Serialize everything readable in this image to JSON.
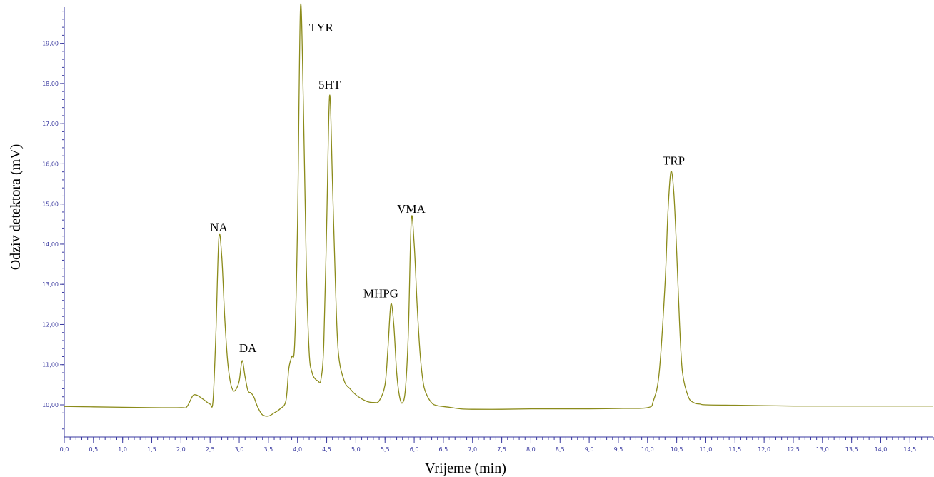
{
  "chart_data": {
    "type": "line",
    "title": "",
    "xlabel": "Vrijeme (min)",
    "ylabel": "Odziv detektora (mV)",
    "xlim": [
      0.0,
      14.9
    ],
    "ylim": [
      9.2,
      19.9
    ],
    "x_ticks": [
      0.0,
      0.5,
      1.0,
      1.5,
      2.0,
      2.5,
      3.0,
      3.5,
      4.0,
      4.5,
      5.0,
      5.5,
      6.0,
      6.5,
      7.0,
      7.5,
      8.0,
      8.5,
      9.0,
      9.5,
      10.0,
      10.5,
      11.0,
      11.5,
      12.0,
      12.5,
      13.0,
      13.5,
      14.0,
      14.5
    ],
    "x_tick_labels": [
      "0,0",
      "0,5",
      "1,0",
      "1,5",
      "2,0",
      "2,5",
      "3,0",
      "3,5",
      "4,0",
      "4,5",
      "5,0",
      "5,5",
      "6,0",
      "6,5",
      "7,0",
      "7,5",
      "8,0",
      "8,5",
      "9,0",
      "9,5",
      "10,0",
      "10,5",
      "11,0",
      "11,5",
      "12,0",
      "12,5",
      "13,0",
      "13,5",
      "14,0",
      "14,5"
    ],
    "y_ticks": [
      10,
      11,
      12,
      13,
      14,
      15,
      16,
      17,
      18,
      19
    ],
    "y_tick_labels": [
      "10,00",
      "11,00",
      "12,00",
      "13,00",
      "14,00",
      "15,00",
      "16,00",
      "17,00",
      "18,00",
      "19,00"
    ],
    "grid": false,
    "line_color": "#8b8b1a",
    "series": [
      {
        "x": [
          0.0,
          0.5,
          1.0,
          1.5,
          2.0,
          2.1,
          2.2,
          2.25,
          2.3,
          2.4,
          2.5,
          2.55,
          2.6,
          2.65,
          2.7,
          2.75,
          2.8,
          2.85,
          2.9,
          2.95,
          3.0,
          3.05,
          3.1,
          3.15,
          3.2,
          3.25,
          3.3,
          3.35,
          3.4,
          3.5,
          3.6,
          3.7,
          3.8,
          3.85,
          3.9,
          3.95,
          4.0,
          4.05,
          4.1,
          4.15,
          4.2,
          4.25,
          4.3,
          4.35,
          4.4,
          4.45,
          4.5,
          4.55,
          4.6,
          4.65,
          4.7,
          4.8,
          4.9,
          5.0,
          5.1,
          5.2,
          5.3,
          5.4,
          5.5,
          5.55,
          5.6,
          5.65,
          5.7,
          5.75,
          5.8,
          5.85,
          5.9,
          5.95,
          6.0,
          6.05,
          6.1,
          6.15,
          6.2,
          6.3,
          6.4,
          6.6,
          6.8,
          7.0,
          7.5,
          8.0,
          8.5,
          9.0,
          9.5,
          10.0,
          10.1,
          10.2,
          10.3,
          10.35,
          10.4,
          10.45,
          10.5,
          10.55,
          10.6,
          10.7,
          10.8,
          10.9,
          11.0,
          11.5,
          12.0,
          12.5,
          13.0,
          13.5,
          14.0,
          14.5,
          14.9
        ],
        "y": [
          9.96,
          9.95,
          9.94,
          9.93,
          9.93,
          9.95,
          10.22,
          10.25,
          10.22,
          10.12,
          10.02,
          10.1,
          11.8,
          14.15,
          13.7,
          12.2,
          11.1,
          10.55,
          10.35,
          10.4,
          10.6,
          11.1,
          10.7,
          10.35,
          10.3,
          10.2,
          10.0,
          9.85,
          9.75,
          9.72,
          9.8,
          9.9,
          10.1,
          10.9,
          11.2,
          11.5,
          14.5,
          19.9,
          17.5,
          13.5,
          11.3,
          10.8,
          10.65,
          10.6,
          10.62,
          11.5,
          14.5,
          17.7,
          15.5,
          13.0,
          11.3,
          10.6,
          10.4,
          10.25,
          10.15,
          10.08,
          10.06,
          10.1,
          10.5,
          11.4,
          12.5,
          12.0,
          10.8,
          10.2,
          10.05,
          10.4,
          11.8,
          14.6,
          14.0,
          12.5,
          11.3,
          10.6,
          10.3,
          10.05,
          9.98,
          9.94,
          9.9,
          9.89,
          9.89,
          9.9,
          9.9,
          9.9,
          9.91,
          9.93,
          10.1,
          10.8,
          13.0,
          14.8,
          15.8,
          15.3,
          13.8,
          12.0,
          10.8,
          10.2,
          10.05,
          10.02,
          10.0,
          9.99,
          9.98,
          9.97,
          9.97,
          9.97,
          9.97,
          9.97,
          9.97
        ]
      }
    ],
    "annotations": [
      {
        "text": "NA",
        "x": 2.65,
        "y": 14.15
      },
      {
        "text": "DA",
        "x": 3.05,
        "y": 11.1
      },
      {
        "text": "TYR",
        "x": 4.1,
        "y": 19.9
      },
      {
        "text": "5HT",
        "x": 4.55,
        "y": 17.7
      },
      {
        "text": "MHPG",
        "x": 5.6,
        "y": 12.5
      },
      {
        "text": "VMA",
        "x": 5.95,
        "y": 14.6
      },
      {
        "text": "TRP",
        "x": 10.45,
        "y": 15.8
      }
    ]
  }
}
